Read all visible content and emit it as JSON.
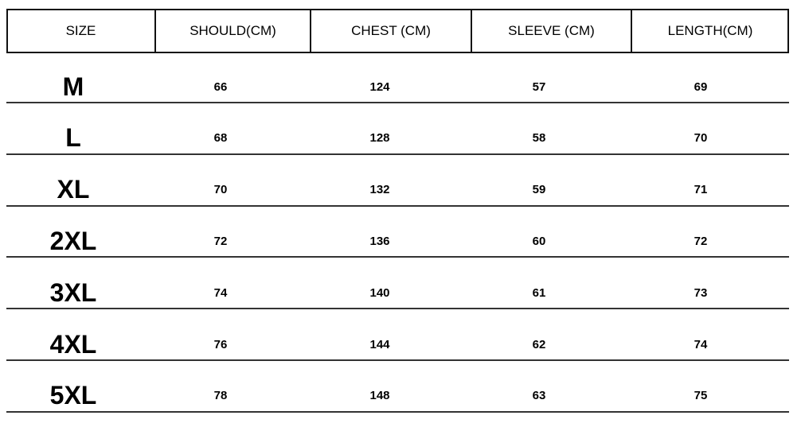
{
  "table": {
    "headers": [
      "SIZE",
      "SHOULD(CM)",
      "CHEST (CM)",
      "SLEEVE (CM)",
      "LENGTH(CM)"
    ],
    "rows": [
      [
        "M",
        66,
        124,
        57,
        69
      ],
      [
        "L",
        68,
        128,
        58,
        70
      ],
      [
        "XL",
        70,
        132,
        59,
        71
      ],
      [
        "2XL",
        72,
        136,
        60,
        72
      ],
      [
        "3XL",
        74,
        140,
        61,
        73
      ],
      [
        "4XL",
        76,
        144,
        62,
        74
      ],
      [
        "5XL",
        78,
        148,
        63,
        75
      ]
    ]
  }
}
